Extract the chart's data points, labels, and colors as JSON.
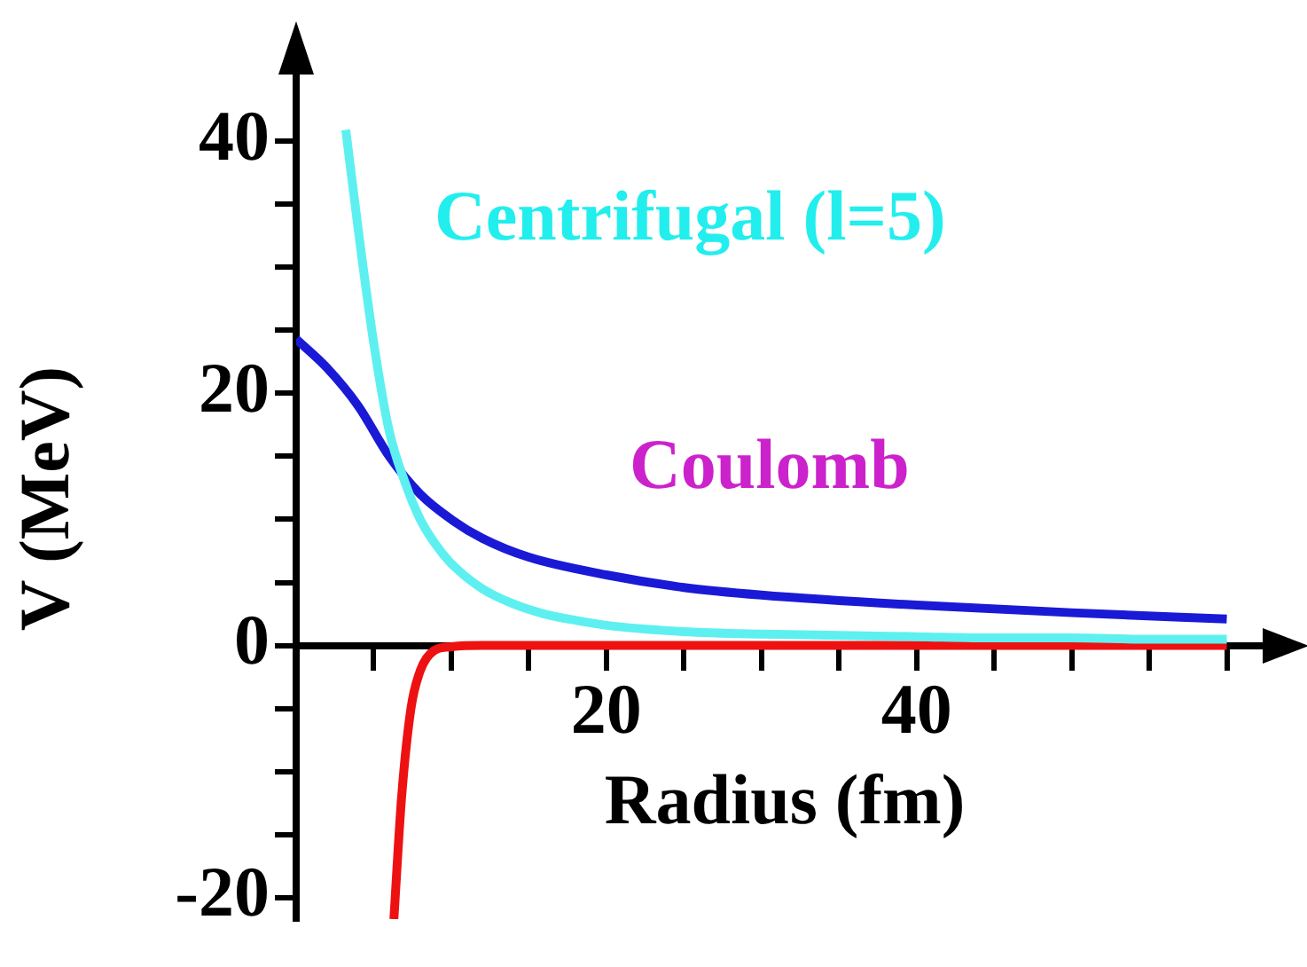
{
  "chart_data": {
    "type": "line",
    "xlabel": "Radius (fm)",
    "ylabel": "V (MeV)",
    "xlim": [
      0,
      63
    ],
    "ylim": [
      -21.7,
      45
    ],
    "xticks": [
      {
        "value": 5,
        "label": null
      },
      {
        "value": 10,
        "label": null
      },
      {
        "value": 15,
        "label": null
      },
      20,
      {
        "value": 25,
        "label": null
      },
      {
        "value": 30,
        "label": null
      },
      {
        "value": 35,
        "label": null
      },
      40,
      {
        "value": 45,
        "label": null
      },
      {
        "value": 50,
        "label": null
      },
      {
        "value": 55,
        "label": null
      },
      {
        "value": 60,
        "label": null
      }
    ],
    "yticks": [
      -20,
      {
        "value": -15,
        "label": null
      },
      {
        "value": -10,
        "label": null
      },
      {
        "value": -5,
        "label": null
      },
      0,
      {
        "value": 5,
        "label": null
      },
      {
        "value": 10,
        "label": null
      },
      {
        "value": 15,
        "label": null
      },
      20,
      {
        "value": 25,
        "label": null
      },
      {
        "value": 30,
        "label": null
      },
      {
        "value": 35,
        "label": null
      },
      40
    ],
    "grid": false,
    "legend": false,
    "marker": "none",
    "series": [
      {
        "name": "Centrifugal (l=5)",
        "color": "#5ef0f0",
        "x": [
          3.2,
          4,
          5,
          6,
          7,
          8,
          9,
          10,
          12,
          14,
          16,
          18,
          20,
          25,
          30,
          35,
          40,
          45,
          50,
          55,
          60
        ],
        "values": [
          40.9,
          33,
          24,
          17,
          13,
          10,
          8,
          6.5,
          4.5,
          3.3,
          2.5,
          2,
          1.6,
          1.1,
          0.9,
          0.8,
          0.7,
          0.6,
          0.6,
          0.5,
          0.5
        ]
      },
      {
        "name": "Coulomb",
        "color": "#1a1ad6",
        "x": [
          0,
          2,
          4,
          6,
          8,
          10,
          12,
          15,
          20,
          25,
          30,
          40,
          50,
          60
        ],
        "values": [
          24.3,
          22,
          19,
          15,
          12,
          10,
          8.5,
          7,
          5.6,
          4.6,
          4,
          3.2,
          2.6,
          2.1
        ]
      },
      {
        "color": "#ee1111",
        "x": [
          6.3,
          6.8,
          7.4,
          8,
          8.9,
          10,
          12,
          20,
          40,
          60
        ],
        "values": [
          -21.7,
          -12,
          -5,
          -2,
          -0.4,
          -0.1,
          0,
          0,
          0,
          0
        ]
      }
    ]
  }
}
